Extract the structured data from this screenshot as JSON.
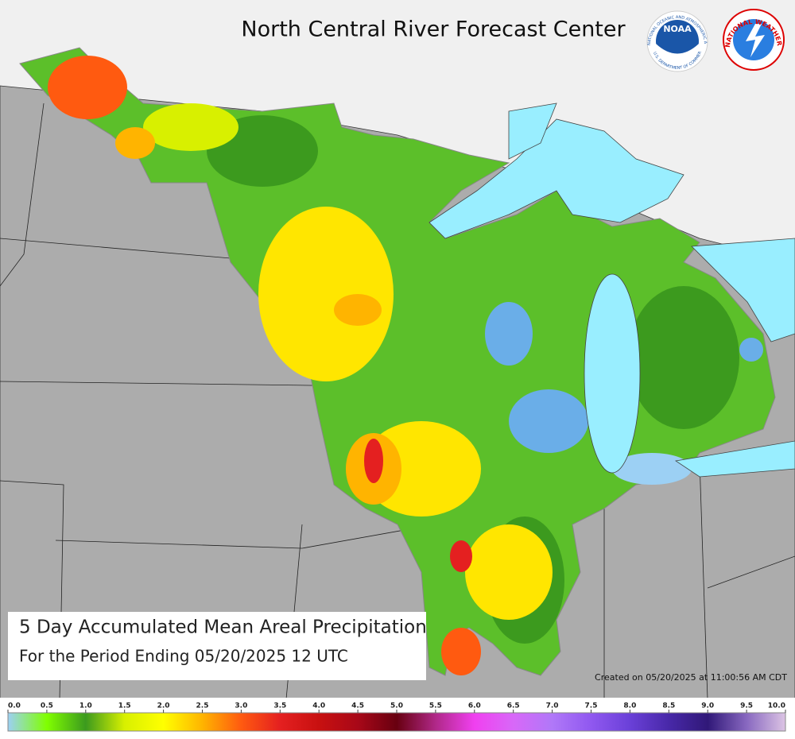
{
  "header": {
    "title": "North Central River Forecast Center",
    "noaa_logo": {
      "name": "NOAA",
      "ring_top": "NATIONAL OCEANIC AND ATMOSPHERIC ADMINISTRATION",
      "ring_bottom": "U.S. DEPARTMENT OF COMMERCE"
    },
    "nws_logo": {
      "ring": "NATIONAL WEATHER SERVICE"
    }
  },
  "caption": {
    "title": "5 Day Accumulated Mean Areal Precipitation",
    "subtitle": "For the Period Ending 05/20/2025 12 UTC"
  },
  "created": "Created on 05/20/2025 at 11:00:56 AM CDT",
  "color_scale": {
    "ticks": [
      {
        "value": 0,
        "label": "0.0"
      },
      0.5,
      {
        "value": 1,
        "label": "1.0"
      },
      1.5,
      {
        "value": 2,
        "label": "2.0"
      },
      2.5,
      {
        "value": 3,
        "label": "3.0"
      },
      3.5,
      {
        "value": 4,
        "label": "4.0"
      },
      4.5,
      {
        "value": 5,
        "label": "5.0"
      },
      5.5,
      {
        "value": 6,
        "label": "6.0"
      },
      6.5,
      {
        "value": 7,
        "label": "7.0"
      },
      7.5,
      {
        "value": 8,
        "label": "8.0"
      },
      8.5,
      {
        "value": 9,
        "label": "9.0"
      },
      9.5,
      {
        "value": 10,
        "label": "10.0"
      }
    ],
    "colors": [
      "#9cd0f4",
      "#80ff00",
      "#3c9a1e",
      "#d8f000",
      "#ffff00",
      "#ffb400",
      "#ff5a10",
      "#e42020",
      "#c81010",
      "#a80818",
      "#680010",
      "#b02888",
      "#f040f0",
      "#d868f8",
      "#b078f8",
      "#9058f0",
      "#6a40d8",
      "#4828a8",
      "#301878",
      "#8868c0",
      "#dcc4e4"
    ]
  }
}
